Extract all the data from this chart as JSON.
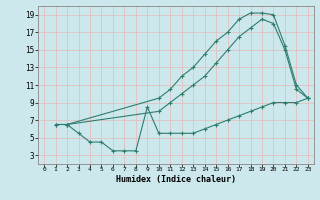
{
  "title": "",
  "xlabel": "Humidex (Indice chaleur)",
  "ylabel": "",
  "bg_color": "#cce8ec",
  "line_color": "#2e7d6e",
  "xlim": [
    -0.5,
    23.5
  ],
  "ylim": [
    2.0,
    20.0
  ],
  "xticks": [
    0,
    1,
    2,
    3,
    4,
    5,
    6,
    7,
    8,
    9,
    10,
    11,
    12,
    13,
    14,
    15,
    16,
    17,
    18,
    19,
    20,
    21,
    22,
    23
  ],
  "yticks": [
    3,
    5,
    7,
    9,
    11,
    13,
    15,
    17,
    19
  ],
  "line1_x": [
    1,
    2,
    10,
    11,
    12,
    13,
    14,
    15,
    16,
    17,
    18,
    19,
    20,
    21,
    22,
    23
  ],
  "line1_y": [
    6.5,
    6.5,
    9.5,
    10.5,
    12.0,
    13.0,
    14.5,
    16.0,
    17.0,
    18.5,
    19.2,
    19.2,
    19.0,
    15.5,
    11.0,
    9.5
  ],
  "line2_x": [
    1,
    2,
    10,
    11,
    12,
    13,
    14,
    15,
    16,
    17,
    18,
    19,
    20,
    21,
    22,
    23
  ],
  "line2_y": [
    6.5,
    6.5,
    8.0,
    9.0,
    10.0,
    11.0,
    12.0,
    13.5,
    15.0,
    16.5,
    17.5,
    18.5,
    18.0,
    15.0,
    10.5,
    9.5
  ],
  "line3_x": [
    2,
    3,
    4,
    5,
    6,
    7,
    8,
    9,
    10,
    11,
    12,
    13,
    14,
    15,
    16,
    17,
    18,
    19,
    20,
    21,
    22,
    23
  ],
  "line3_y": [
    6.5,
    5.5,
    4.5,
    4.5,
    3.5,
    3.5,
    3.5,
    8.5,
    5.5,
    5.5,
    5.5,
    5.5,
    6.0,
    6.5,
    7.0,
    7.5,
    8.0,
    8.5,
    9.0,
    9.0,
    9.0,
    9.5
  ]
}
